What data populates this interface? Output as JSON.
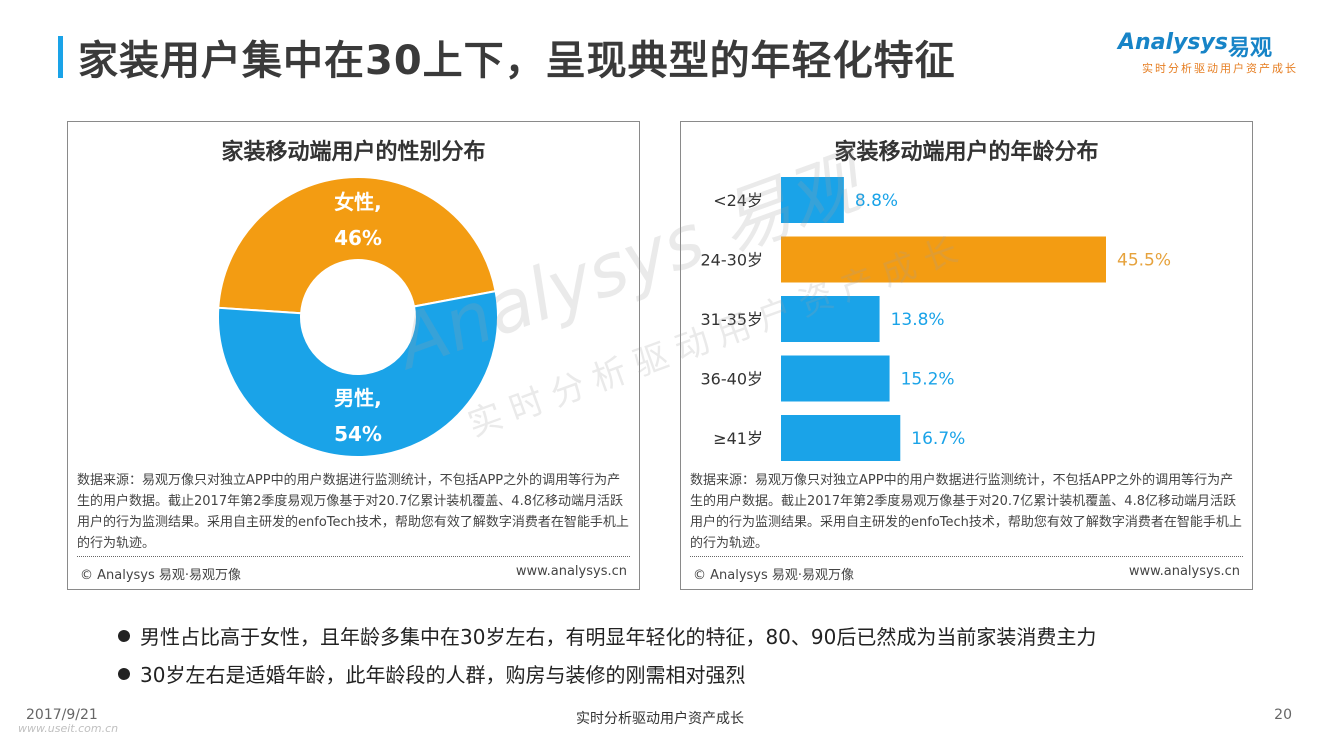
{
  "page": {
    "title": "家装用户集中在30上下，呈现典型的年轻化特征",
    "page_number": "20",
    "date": "2017/9/21",
    "footer_center": "实时分析驱动用户资产成长",
    "footer_watermark": "www.useit.com.cn"
  },
  "logo": {
    "word": "Analysys",
    "cn": "易观",
    "tagline": "实时分析驱动用户资产成长"
  },
  "watermark": {
    "word": "Analysys 易观",
    "cn": "实时分析驱动用户资产成长"
  },
  "source_text": "数据来源：易观万像只对独立APP中的用户数据进行监测统计，不包括APP之外的调用等行为产生的用户数据。截止2017年第2季度易观万像基于对20.7亿累计装机覆盖、4.8亿移动端月活跃用户的行为监测结果。采用自主研发的enfoTech技术，帮助您有效了解数字消费者在智能手机上的行为轨迹。",
  "copyright": "© Analysys 易观·易观万像",
  "website": "www.analysys.cn",
  "bullets": [
    "男性占比高于女性，且年龄多集中在30岁左右，有明显年轻化的特征，80、90后已然成为当前家装消费主力",
    "30岁左右是适婚年龄，此年龄段的人群，购房与装修的刚需相对强烈"
  ],
  "chart_data": [
    {
      "type": "pie",
      "title": "家装移动端用户的性别分布",
      "slices": [
        {
          "name": "女性",
          "value": 46,
          "label_name": "女性,",
          "label_value": "46%",
          "color": "#f39c12"
        },
        {
          "name": "男性",
          "value": 54,
          "label_name": "男性,",
          "label_value": "54%",
          "color": "#1aa3e8"
        }
      ]
    },
    {
      "type": "bar",
      "orientation": "horizontal",
      "title": "家装移动端用户的年龄分布",
      "categories": [
        "<24岁",
        "24-30岁",
        "31-35岁",
        "36-40岁",
        "≥41岁"
      ],
      "values": [
        8.8,
        45.5,
        13.8,
        15.2,
        16.7
      ],
      "value_labels": [
        "8.8%",
        "45.5%",
        "13.8%",
        "15.2%",
        "16.7%"
      ],
      "colors": [
        "#1aa3e8",
        "#f39c12",
        "#1aa3e8",
        "#1aa3e8",
        "#1aa3e8"
      ],
      "label_colors": [
        "#1aa3e8",
        "#e6a23c",
        "#1aa3e8",
        "#1aa3e8",
        "#1aa3e8"
      ],
      "xlim": [
        0,
        60
      ]
    }
  ]
}
